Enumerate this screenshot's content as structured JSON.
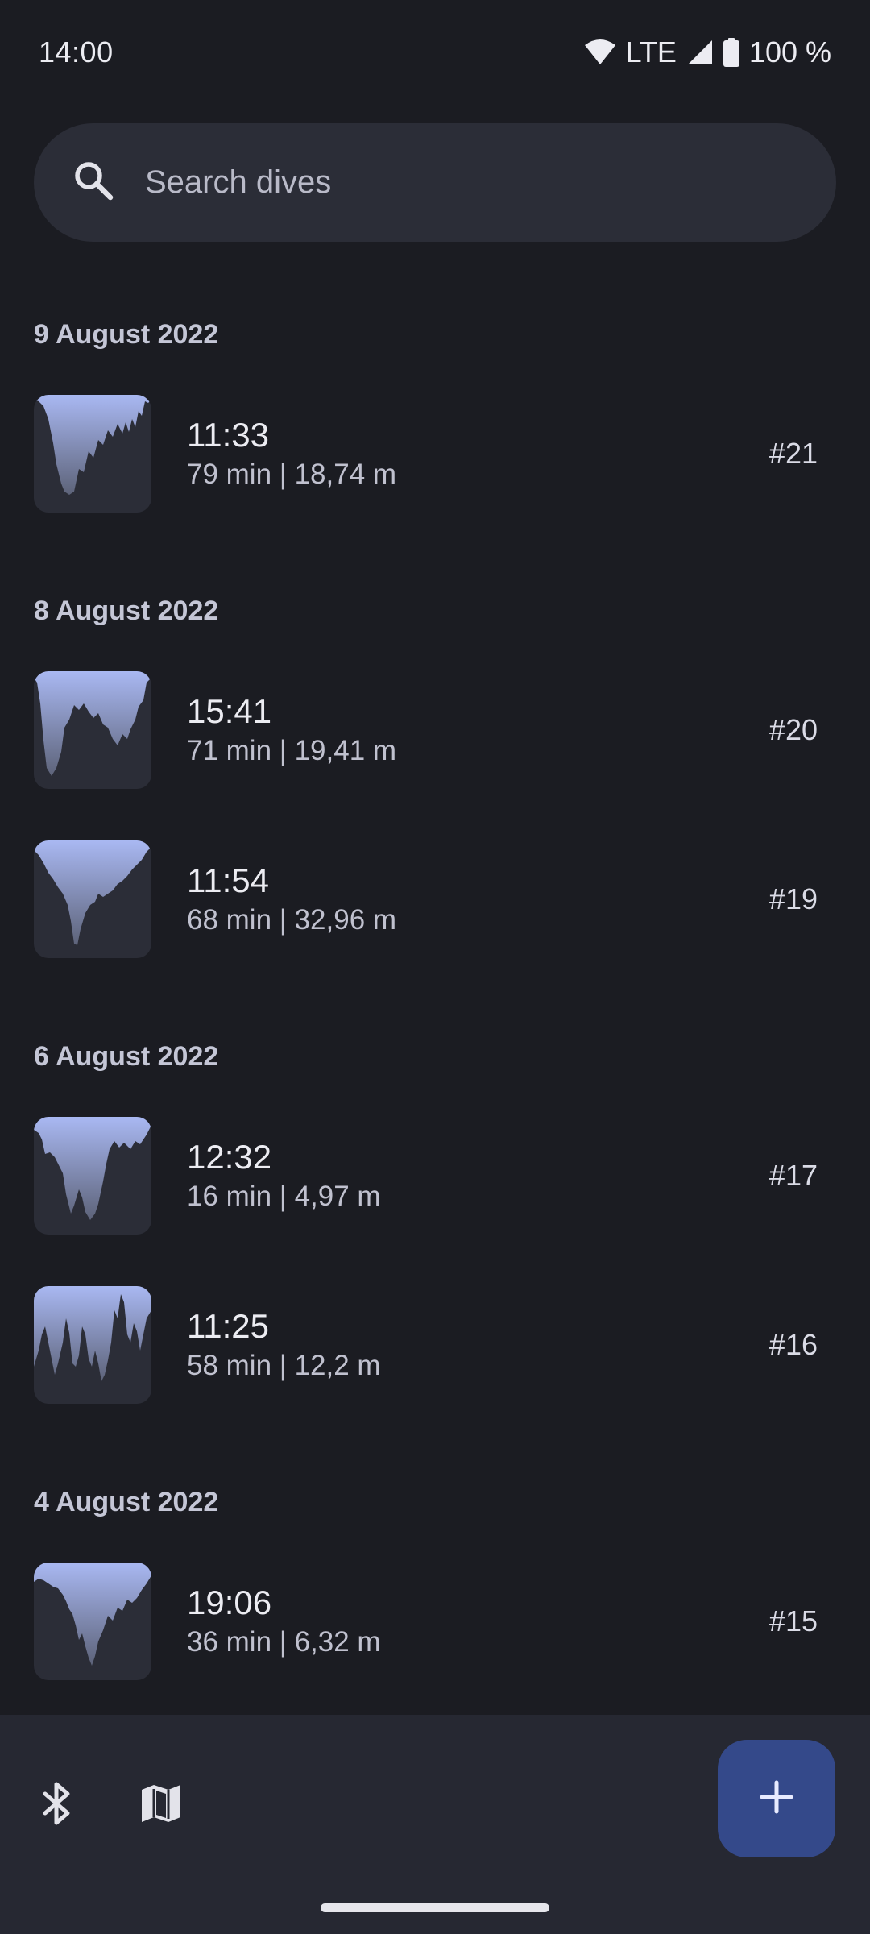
{
  "status_bar": {
    "time": "14:00",
    "network": "LTE",
    "battery": "100 %",
    "icons": [
      "wifi-icon",
      "cellular-signal-icon",
      "battery-icon"
    ]
  },
  "search": {
    "placeholder": "Search dives",
    "value": "",
    "icon": "search-icon"
  },
  "groups": [
    {
      "date": "9 August 2022",
      "dives": [
        {
          "time": "11:33",
          "meta": "79 min | 18,74 m",
          "number": "#21"
        }
      ]
    },
    {
      "date": "8 August 2022",
      "dives": [
        {
          "time": "15:41",
          "meta": "71 min | 19,41 m",
          "number": "#20"
        },
        {
          "time": "11:54",
          "meta": "68 min | 32,96 m",
          "number": "#19"
        }
      ]
    },
    {
      "date": "6 August 2022",
      "dives": [
        {
          "time": "12:32",
          "meta": "16 min | 4,97 m",
          "number": "#17"
        },
        {
          "time": "11:25",
          "meta": "58 min | 12,2 m",
          "number": "#16"
        }
      ]
    },
    {
      "date": "4 August 2022",
      "dives": [
        {
          "time": "19:06",
          "meta": "36 min | 6,32 m",
          "number": "#15"
        }
      ]
    }
  ],
  "bottom_bar": {
    "icons": [
      "bluetooth-icon",
      "map-icon"
    ],
    "fab_icon": "plus-icon"
  },
  "colors": {
    "background": "#1b1c22",
    "surface": "#2b2d37",
    "bottom_bar": "#262832",
    "fab": "#34498a",
    "profile_fill_top": "#a9b8f2"
  }
}
